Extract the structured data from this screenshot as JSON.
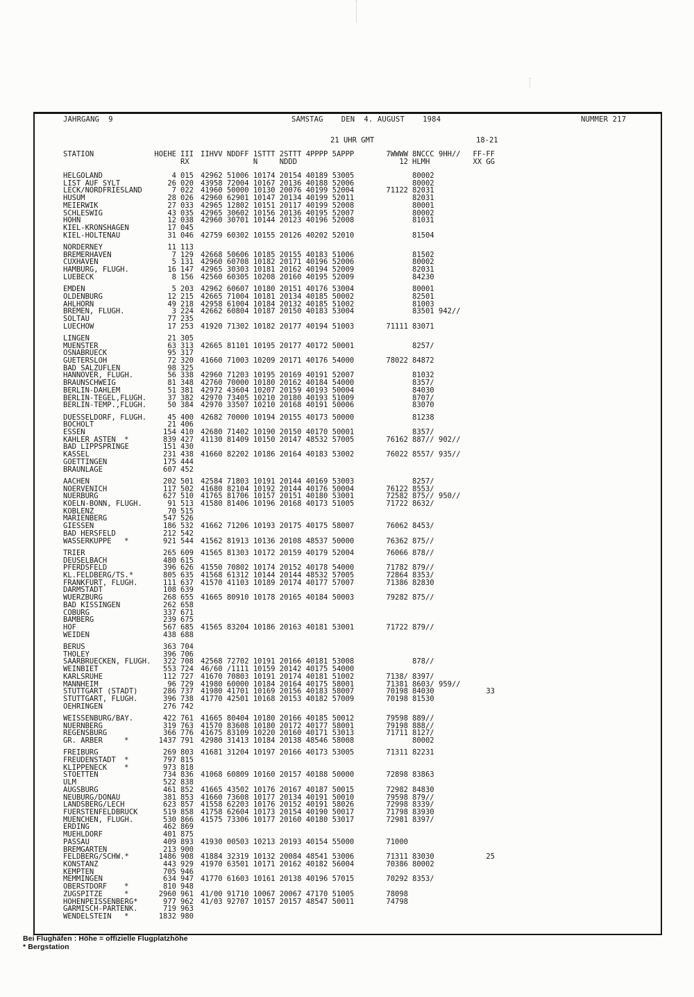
{
  "header": {
    "jahrgang": "JAHRGANG  9",
    "date": "SAMSTAG    DEN  4. AUGUST    1984",
    "nummer": "NUMMER 217",
    "time": "21 UHR GMT",
    "period": "18-21"
  },
  "columns": {
    "station": "STATION",
    "hoehe": "HOEHE",
    "id": "III",
    "groups": "IIHVV NDDFF 1STTT 2STTT 4PPPP 5APPP",
    "w7": "7WWWW",
    "w8": "8NCCC",
    "w9": "9HH//",
    "ff": "FF-FF",
    "sub_id": "RX",
    "sub_groups": "            N     NDDD",
    "sub_w7": "12",
    "sub_w8": "HLMH",
    "sub_ff": "XX GG"
  },
  "footer": {
    "line1": "Bei Flughäfen : Höhe = offizielle Flugplatzhöhe",
    "line2": "* Bergstation"
  },
  "table": {
    "blocks": [
      [
        [
          "HELGOLAND",
          "",
          "4",
          "015",
          "42962 51006 10174 20154 40189 53005",
          "",
          "80002"
        ],
        [
          "LIST AUF SYLT",
          "",
          "26",
          "020",
          "43958 72004 10167 20136 40188 52006",
          "",
          "80002"
        ],
        [
          "LECK/NORDFRIESLAND",
          "",
          "7",
          "022",
          "41960 50000 10130 20076 40199 52004",
          "71122",
          "82031"
        ],
        [
          "HUSUM",
          "",
          "28",
          "026",
          "42960 62901 10147 20134 40199 52011",
          "",
          "82031"
        ],
        [
          "MEIERWIK",
          "",
          "27",
          "033",
          "42965 12802 10151 20117 40199 52008",
          "",
          "80001"
        ],
        [
          "SCHLESWIG",
          "",
          "43",
          "035",
          "42965 30602 10156 20136 40195 52007",
          "",
          "80002"
        ],
        [
          "HOHN",
          "",
          "12",
          "038",
          "42960 30701 10144 20123 40196 52008",
          "",
          "81031"
        ],
        [
          "KIEL-KRONSHAGEN",
          "",
          "17",
          "045"
        ],
        [
          "KIEL-HOLTENAU",
          "",
          "31",
          "046",
          "42759 60302 10155 20126 40202 52010",
          "",
          "81504"
        ]
      ],
      [
        [
          "NORDERNEY",
          "",
          "11",
          "113"
        ],
        [
          "BREMERHAVEN",
          "",
          "7",
          "129",
          "42668 50606 10185 20155 40183 51006",
          "",
          "81502"
        ],
        [
          "CUXHAVEN",
          "",
          "5",
          "131",
          "42960 60708 10182 20171 40196 52006",
          "",
          "80002"
        ],
        [
          "HAMBURG, FLUGH.",
          "",
          "16",
          "147",
          "42965 30303 10181 20162 40194 52009",
          "",
          "82031"
        ],
        [
          "LUEBECK",
          "",
          "8",
          "156",
          "42560 60305 10208 20160 40195 52009",
          "",
          "84230"
        ]
      ],
      [
        [
          "EMDEN",
          "",
          "5",
          "203",
          "42962 60607 10180 20151 40176 53004",
          "",
          "80001"
        ],
        [
          "OLDENBURG",
          "",
          "12",
          "215",
          "42665 71004 10181 20134 40185 50002",
          "",
          "82501"
        ],
        [
          "AHLHORN",
          "",
          "49",
          "218",
          "42958 61004 10184 20132 40185 51002",
          "",
          "81003"
        ],
        [
          "BREMEN, FLUGH.",
          "",
          "3",
          "224",
          "42662 60804 10187 20150 40183 53004",
          "",
          "83501",
          "942//"
        ],
        [
          "SOLTAU",
          "",
          "77",
          "235"
        ],
        [
          "LUECHOW",
          "",
          "17",
          "253",
          "41920 71302 10182 20177 40194 51003",
          "71111",
          "83071"
        ]
      ],
      [
        [
          "LINGEN",
          "",
          "21",
          "305"
        ],
        [
          "MUENSTER",
          "",
          "63",
          "313",
          "42665 81101 10195 20177 40172 50001",
          "",
          "8257/"
        ],
        [
          "OSNABRUECK",
          "",
          "95",
          "317"
        ],
        [
          "GUETERSLOH",
          "",
          "72",
          "320",
          "41660 71003 10209 20171 40176 54000",
          "78022",
          "84872"
        ],
        [
          "BAD SALZUFLEN",
          "",
          "98",
          "325"
        ],
        [
          "HANNOVER, FLUGH.",
          "",
          "56",
          "338",
          "42960 71203 10195 20169 40191 52007",
          "",
          "81032"
        ],
        [
          "BRAUNSCHWEIG",
          "",
          "81",
          "348",
          "42760 70000 10180 20162 40184 54000",
          "",
          "8357/"
        ],
        [
          "BERLIN-DAHLEM",
          "",
          "51",
          "381",
          "42972 43604 10207 20159 40193 50004",
          "",
          "84030"
        ],
        [
          "BERLIN-TEGEL,FLUGH.",
          "",
          "37",
          "382",
          "42970 73405 10210 20180 40193 51009",
          "",
          "8707/"
        ],
        [
          "BERLIN-TEMP.,FLUGH.",
          "",
          "50",
          "384",
          "42970 33507 10210 20168 40191 50006",
          "",
          "83070"
        ]
      ],
      [
        [
          "DUESSELDORF, FLUGH.",
          "",
          "45",
          "400",
          "42682 70000 10194 20155 40173 50000",
          "",
          "81238"
        ],
        [
          "BOCHOLT",
          "",
          "21",
          "406"
        ],
        [
          "ESSEN",
          "",
          "154",
          "410",
          "42680 71402 10190 20150 40170 50001",
          "",
          "8357/"
        ],
        [
          "KAHLER ASTEN",
          "*",
          "839",
          "427",
          "41130 81409 10150 20147 48532 57005",
          "76162",
          "887//",
          "902//"
        ],
        [
          "BAD LIPPSPRINGE",
          "",
          "151",
          "430"
        ],
        [
          "KASSEL",
          "",
          "231",
          "438",
          "41660 82202 10186 20164 40183 53002",
          "76022",
          "8557/",
          "935//"
        ],
        [
          "GOETTINGEN",
          "",
          "175",
          "444"
        ],
        [
          "BRAUNLAGE",
          "",
          "607",
          "452"
        ]
      ],
      [
        [
          "AACHEN",
          "",
          "202",
          "501",
          "42584 71803 10191 20144 40169 53003",
          "",
          "8257/"
        ],
        [
          "NOERVENICH",
          "",
          "117",
          "502",
          "41680 82104 10192 20144 40176 50004",
          "76122",
          "8553/"
        ],
        [
          "NUERBURG",
          "",
          "627",
          "510",
          "41765 81706 10157 20151 40180 53001",
          "72582",
          "875//",
          "950//"
        ],
        [
          "KOELN-BONN, FLUGH.",
          "",
          "91",
          "513",
          "41580 81406 10196 20168 40173 51005",
          "71722",
          "8632/"
        ],
        [
          "KOBLENZ",
          "",
          "70",
          "515"
        ],
        [
          "MARIENBERG",
          "",
          "547",
          "526"
        ],
        [
          "GIESSEN",
          "",
          "186",
          "532",
          "41662 71206 10193 20175 40175 58007",
          "76062",
          "8453/"
        ],
        [
          "BAD HERSFELD",
          "",
          "212",
          "542"
        ],
        [
          "WASSERKUPPE",
          "*",
          "921",
          "544",
          "41562 81913 10136 20108 48537 50000",
          "76362",
          "875//"
        ]
      ],
      [
        [
          "TRIER",
          "",
          "265",
          "609",
          "41565 81303 10172 20159 40179 52004",
          "76066",
          "878//"
        ],
        [
          "DEUSELBACH",
          "",
          "480",
          "615"
        ],
        [
          "PFERDSFELD",
          "",
          "396",
          "626",
          "41550 70802 10174 20152 40178 54000",
          "71782",
          "879//"
        ],
        [
          "KL.FELDBERG/TS.",
          "*",
          "805",
          "635",
          "41568 61312 10144 20144 48532 57005",
          "72864",
          "8353/"
        ],
        [
          "FRANKFURT, FLUGH.",
          "",
          "111",
          "637",
          "41570 41103 10189 20174 40177 57007",
          "71386",
          "82830"
        ],
        [
          "DARMSTADT",
          "",
          "108",
          "639"
        ],
        [
          "WUERZBURG",
          "",
          "268",
          "655",
          "41665 80910 10178 20165 40184 50003",
          "79282",
          "875//"
        ],
        [
          "BAD KISSINGEN",
          "",
          "262",
          "658"
        ],
        [
          "COBURG",
          "",
          "337",
          "671"
        ],
        [
          "BAMBERG",
          "",
          "239",
          "675"
        ],
        [
          "HOF",
          "",
          "567",
          "685",
          "41565 83204 10186 20163 40181 53001",
          "71722",
          "879//"
        ],
        [
          "WEIDEN",
          "",
          "438",
          "688"
        ]
      ],
      [
        [
          "BERUS",
          "",
          "363",
          "704"
        ],
        [
          "THOLEY",
          "",
          "396",
          "706"
        ],
        [
          "SAARBRUECKEN, FLUGH.",
          "",
          "322",
          "708",
          "42568 72702 10191 20166 40181 53008",
          "",
          "878//"
        ],
        [
          "WEINBIET",
          "",
          "553",
          "724",
          "46/60 /1111 10159 20142 40175 54000"
        ],
        [
          "KARLSRUHE",
          "",
          "112",
          "727",
          "41670 70803 10191 20174 40181 51002",
          "7138/",
          "8397/"
        ],
        [
          "MANNHEIM",
          "",
          "96",
          "729",
          "41980 60000 10184 20164 40175 58001",
          "71381",
          "8603/",
          "959//"
        ],
        [
          "STUTTGART (STADT)",
          "",
          "286",
          "737",
          "41980 41701 10169 20156 40183 58007",
          "70198",
          "84030",
          "",
          "33"
        ],
        [
          "STUTTGART, FLUGH.",
          "",
          "396",
          "738",
          "41770 42501 10168 20153 40182 57009",
          "70198",
          "81530"
        ],
        [
          "OEHRINGEN",
          "",
          "276",
          "742"
        ]
      ],
      [
        [
          "WEISSENBURG/BAY.",
          "",
          "422",
          "761",
          "41665 80404 10180 20166 40185 50012",
          "79598",
          "889//"
        ],
        [
          "NUERNBERG",
          "",
          "319",
          "763",
          "41570 83608 10180 20172 40177 58001",
          "79198",
          "888//"
        ],
        [
          "REGENSBURG",
          "",
          "366",
          "776",
          "41675 83109 10220 20160 40171 53013",
          "71711",
          "8127/"
        ],
        [
          "GR. ARBER",
          "*",
          "1437",
          "791",
          "42980 31413 10184 20138 48546 58008",
          "",
          "80002"
        ]
      ],
      [
        [
          "FREIBURG",
          "",
          "269",
          "803",
          "41681 31204 10197 20166 40173 53005",
          "71311",
          "82231"
        ],
        [
          "FREUDENSTADT",
          "*",
          "797",
          "815"
        ],
        [
          "KLIPPENECK",
          "*",
          "973",
          "818"
        ],
        [
          "STOETTEN",
          "",
          "734",
          "836",
          "41068 60809 10160 20157 40188 50000",
          "72898",
          "83863"
        ],
        [
          "ULM",
          "",
          "522",
          "838"
        ],
        [
          "AUGSBURG",
          "",
          "461",
          "852",
          "41665 43502 10176 20167 40187 50015",
          "72982",
          "84830"
        ],
        [
          "NEUBURG/DONAU",
          "",
          "381",
          "853",
          "41660 73608 10177 20134 40191 50010",
          "79598",
          "879//"
        ],
        [
          "LANDSBERG/LECH",
          "",
          "623",
          "857",
          "41558 62203 10176 20152 40191 58026",
          "72998",
          "8339/"
        ],
        [
          "FUERSTENFELDBRUCK",
          "",
          "519",
          "858",
          "41758 62604 10173 20154 40190 50017",
          "71798",
          "83930"
        ],
        [
          "MUENCHEN, FLUGH.",
          "",
          "530",
          "866",
          "41575 73306 10177 20160 40180 53017",
          "72981",
          "8397/"
        ],
        [
          "ERDING",
          "",
          "462",
          "869"
        ],
        [
          "MUEHLDORF",
          "",
          "401",
          "875"
        ],
        [
          "PASSAU",
          "",
          "409",
          "893",
          "41930 00503 10213 20193 40154 55000",
          "71000"
        ],
        [
          "BREMGARTEN",
          "",
          "213",
          "900"
        ],
        [
          "FELDBERG/SCHW.",
          "*",
          "1486",
          "908",
          "41884 32319 10132 20084 48541 53006",
          "71311",
          "83030",
          "",
          "25"
        ],
        [
          "KONSTANZ",
          "",
          "443",
          "929",
          "41970 63501 10171 20162 40182 56004",
          "70386",
          "80002"
        ],
        [
          "KEMPTEN",
          "",
          "705",
          "946"
        ],
        [
          "MEMMINGEN",
          "",
          "634",
          "947",
          "41770 61603 10161 20138 40196 57015",
          "70292",
          "8353/"
        ],
        [
          "OBERSTDORF",
          "*",
          "810",
          "948"
        ],
        [
          "ZUGSPITZE",
          "*",
          "2960",
          "961",
          "41/00 91710 10067 20067 47170 51005",
          "78098"
        ],
        [
          "HOHENPEISSENBERG",
          "*",
          "977",
          "962",
          "41/03 92707 10157 20157 48547 50011",
          "74798"
        ],
        [
          "GARMISCH-PARTENK.",
          "",
          "719",
          "963"
        ],
        [
          "WENDELSTEIN",
          "*",
          "1832",
          "980"
        ]
      ]
    ]
  }
}
